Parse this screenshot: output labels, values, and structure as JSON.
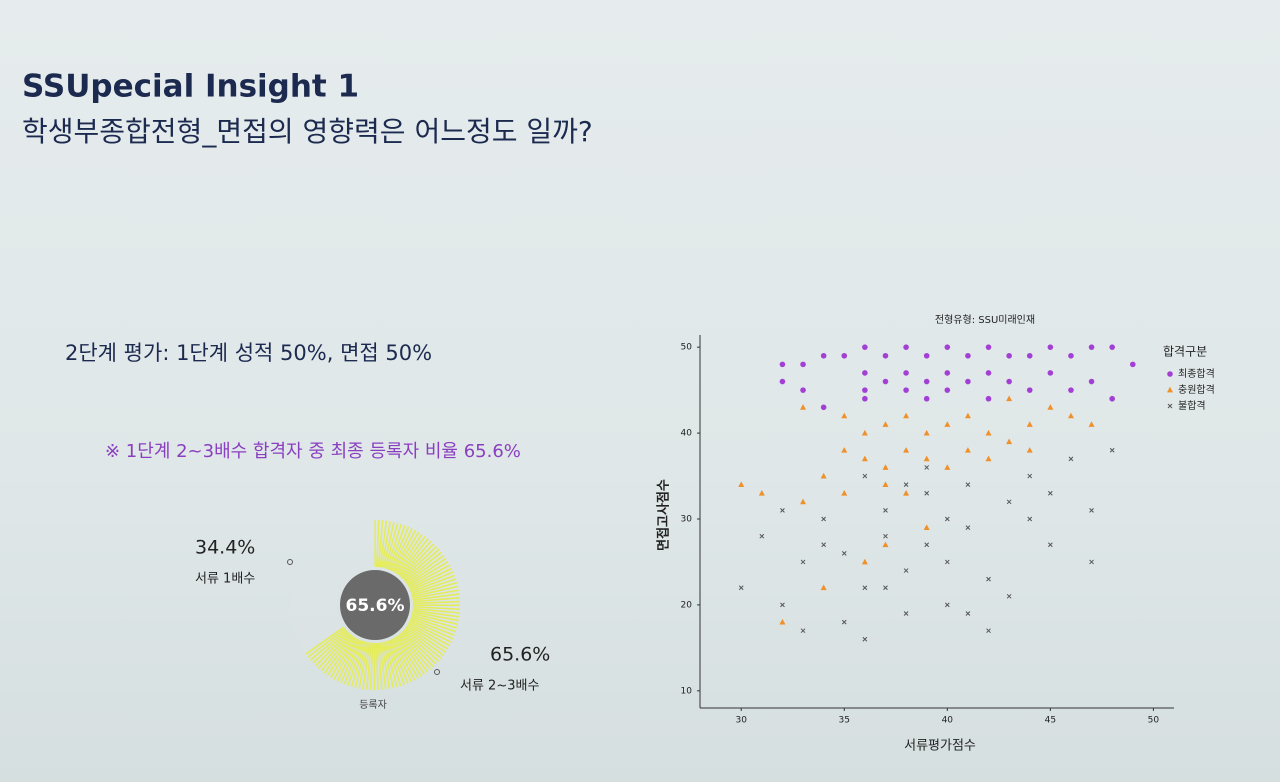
{
  "header": {
    "title": "SSUpecial Insight 1",
    "subtitle": "학생부종합전형_면접의 영향력은 어느정도 일까?"
  },
  "body": {
    "evaluation": "2단계 평가: 1단계 성적 50%, 면접 50%",
    "note": "※ 1단계 2~3배수 합격자 중 최종 등록자 비율 65.6%"
  },
  "chart_data": [
    {
      "type": "gauge",
      "categories": [
        "서류 2~3배수",
        "서류 1배수"
      ],
      "values": [
        65.6,
        34.4
      ],
      "value_labels": [
        "65.6%",
        "34.4%"
      ],
      "center_label": "65.6%",
      "annotation": "등록자",
      "colors": [
        "#e4ec5c",
        "#dfe6e8"
      ]
    },
    {
      "type": "scatter",
      "title": "전형유형: SSU미래인재",
      "x_label": "서류평가점수",
      "y_label": "면접고사점수",
      "legend_title": "합격구분",
      "legend": "upper right",
      "xlim": [
        28,
        51
      ],
      "ylim": [
        8,
        52
      ],
      "xticks": [
        30,
        35,
        40,
        45,
        50
      ],
      "yticks": [
        10,
        20,
        30,
        40,
        50
      ],
      "series": [
        {
          "name": "최종합격",
          "color": "#a23fd4",
          "marker": "circle",
          "x": [
            34,
            35,
            36,
            37,
            38,
            39,
            40,
            41,
            42,
            43,
            44,
            45,
            46,
            47,
            48,
            33,
            36,
            37,
            38,
            39,
            40,
            41,
            42,
            36,
            38,
            40,
            43,
            45,
            47,
            49,
            32,
            33,
            34,
            36,
            39,
            42,
            44,
            46,
            48,
            32
          ],
          "values": [
            49,
            49,
            50,
            49,
            50,
            49,
            50,
            49,
            50,
            49,
            49,
            50,
            49,
            50,
            50,
            48,
            47,
            46,
            47,
            46,
            47,
            46,
            47,
            45,
            45,
            45,
            46,
            47,
            46,
            48,
            46,
            45,
            43,
            44,
            44,
            44,
            45,
            45,
            44,
            48
          ]
        },
        {
          "name": "충원합격",
          "color": "#f0902a",
          "marker": "triangle",
          "x": [
            33,
            35,
            36,
            37,
            38,
            39,
            40,
            41,
            42,
            43,
            44,
            45,
            46,
            47,
            35,
            36,
            37,
            38,
            39,
            40,
            41,
            34,
            33,
            35,
            36,
            37,
            38,
            39,
            42,
            44,
            32,
            34,
            30,
            31,
            43,
            37
          ],
          "values": [
            43,
            42,
            40,
            41,
            42,
            40,
            41,
            42,
            40,
            39,
            41,
            43,
            42,
            41,
            38,
            37,
            36,
            38,
            37,
            36,
            38,
            35,
            32,
            33,
            25,
            34,
            33,
            29,
            37,
            38,
            18,
            22,
            34,
            33,
            44,
            27
          ]
        },
        {
          "name": "불합격",
          "color": "#555555",
          "marker": "x",
          "x": [
            30,
            31,
            32,
            33,
            34,
            35,
            36,
            37,
            38,
            39,
            40,
            41,
            42,
            43,
            44,
            45,
            46,
            47,
            48,
            36,
            38,
            37,
            35,
            39,
            40,
            41,
            42,
            38,
            36,
            33,
            34,
            32,
            45,
            47,
            39,
            40,
            37,
            43,
            41,
            44
          ],
          "values": [
            22,
            28,
            20,
            25,
            30,
            18,
            22,
            31,
            24,
            27,
            20,
            29,
            23,
            32,
            35,
            33,
            37,
            31,
            38,
            35,
            34,
            28,
            26,
            33,
            25,
            19,
            17,
            19,
            16,
            17,
            27,
            31,
            27,
            25,
            36,
            30,
            22,
            21,
            34,
            30
          ]
        }
      ]
    }
  ]
}
